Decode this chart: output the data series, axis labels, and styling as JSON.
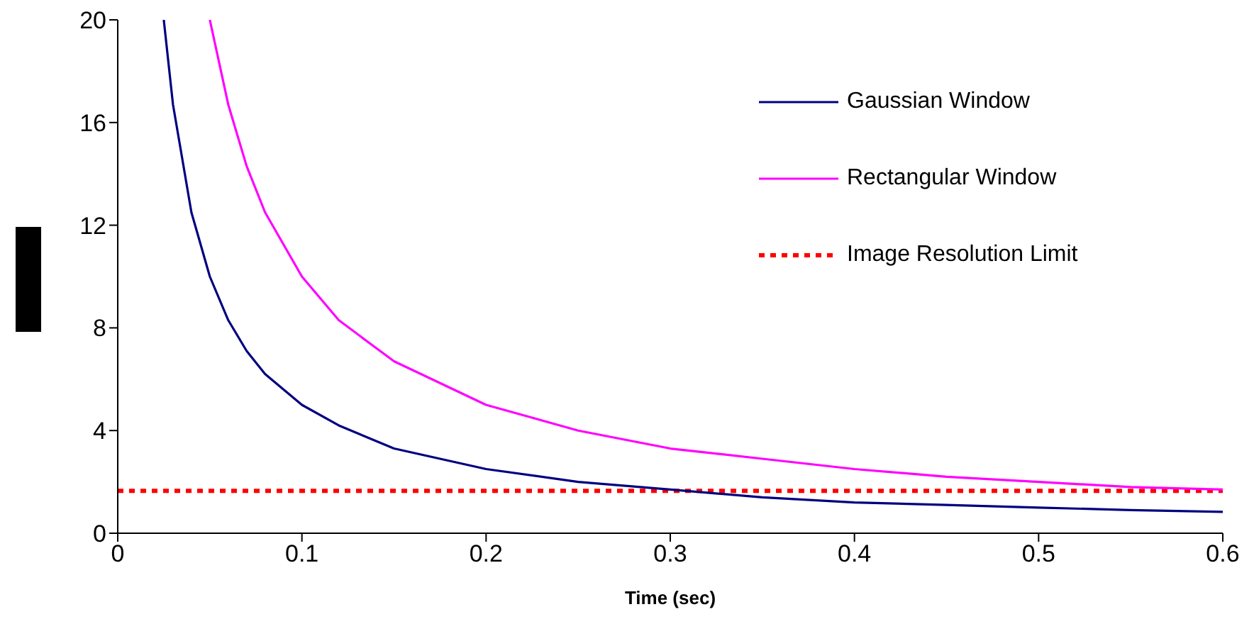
{
  "chart_data": {
    "type": "line",
    "xlabel": "Time (sec)",
    "xlim": [
      0,
      0.6
    ],
    "xticks": [
      0,
      0.1,
      0.2,
      0.3,
      0.4,
      0.5,
      0.6
    ],
    "ylim": [
      0,
      20
    ],
    "yticks": [
      0,
      4,
      8,
      12,
      16,
      20
    ],
    "grid": false,
    "legend": "right",
    "marker": "none",
    "line_style": "solid",
    "series": [
      {
        "name": "Gaussian Window",
        "color": "#000080",
        "x": [
          0.025,
          0.03,
          0.04,
          0.05,
          0.06,
          0.07,
          0.08,
          0.1,
          0.12,
          0.15,
          0.2,
          0.25,
          0.3,
          0.35,
          0.4,
          0.45,
          0.5,
          0.55,
          0.6
        ],
        "values": [
          20,
          16.7,
          12.5,
          10,
          8.3,
          7.1,
          6.2,
          5,
          4.2,
          3.3,
          2.5,
          2,
          1.7,
          1.4,
          1.2,
          1.1,
          1,
          0.9,
          0.83
        ]
      },
      {
        "name": "Rectangular Window",
        "color": "#ff00ff",
        "x": [
          0.05,
          0.06,
          0.07,
          0.08,
          0.1,
          0.12,
          0.15,
          0.2,
          0.25,
          0.3,
          0.35,
          0.4,
          0.45,
          0.5,
          0.55,
          0.6
        ],
        "values": [
          20,
          16.7,
          14.3,
          12.5,
          10,
          8.3,
          6.7,
          5,
          4,
          3.3,
          2.9,
          2.5,
          2.2,
          2,
          1.8,
          1.7
        ]
      }
    ],
    "ref_lines": [
      {
        "axis": "y",
        "value": 1.65,
        "label": "Image Resolution Limit",
        "color": "#ff0000",
        "line_style": "dotted"
      }
    ]
  }
}
